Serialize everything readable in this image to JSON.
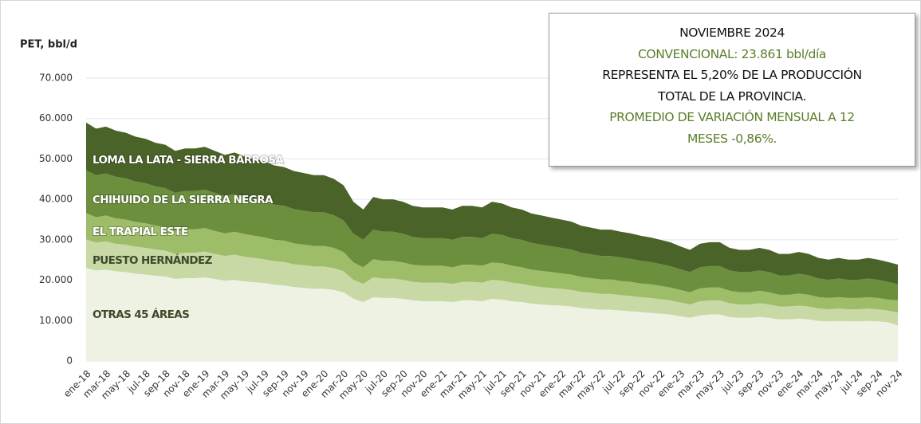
{
  "chart_data": {
    "type": "stacked_area",
    "y_label": "PET, bbl/d",
    "categories": [
      "ene-18",
      null,
      "mar-18",
      null,
      "may-18",
      null,
      "jul-18",
      null,
      "sep-18",
      null,
      "nov-18",
      null,
      "ene-19",
      null,
      "mar-19",
      null,
      "may-19",
      null,
      "jul-19",
      null,
      "sep-19",
      null,
      "nov-19",
      null,
      "ene-20",
      null,
      "mar-20",
      null,
      "may-20",
      null,
      "jul-20",
      null,
      "sep-20",
      null,
      "nov-20",
      null,
      "ene-21",
      null,
      "mar-21",
      null,
      "may-21",
      null,
      "jul-21",
      null,
      "sep-21",
      null,
      "nov-21",
      null,
      "ene-22",
      null,
      "mar-22",
      null,
      "may-22",
      null,
      "jul-22",
      null,
      "sep-22",
      null,
      "nov-22",
      null,
      "ene-23",
      null,
      "mar-23",
      null,
      "may-23",
      null,
      "jul-23",
      null,
      "sep-23",
      null,
      "nov-23",
      null,
      "ene-24",
      null,
      "mar-24",
      null,
      "may-24",
      null,
      "jul-24",
      null,
      "sep-24",
      null,
      "nov-24"
    ],
    "series": [
      {
        "name": "OTRAS 45 ÁREAS",
        "color": "#eef2e3",
        "values": [
          23000,
          22400,
          22600,
          22200,
          22000,
          21600,
          21400,
          21100,
          20900,
          20300,
          20500,
          20500,
          20700,
          20300,
          19900,
          20100,
          19700,
          19500,
          19300,
          18900,
          18700,
          18300,
          18100,
          17900,
          17900,
          17600,
          17000,
          15400,
          14600,
          15800,
          15600,
          15600,
          15400,
          15000,
          14800,
          14800,
          14800,
          14600,
          15000,
          15000,
          14800,
          15400,
          15200,
          14800,
          14600,
          14200,
          14000,
          13800,
          13700,
          13500,
          13100,
          12900,
          12700,
          12700,
          12500,
          12300,
          12100,
          11900,
          11700,
          11500,
          11100,
          10700,
          11300,
          11500,
          11500,
          10900,
          10700,
          10700,
          10900,
          10700,
          10300,
          10300,
          10500,
          10300,
          9900,
          9800,
          9900,
          9800,
          9800,
          9900,
          9800,
          9600,
          8800
        ]
      },
      {
        "name": "PUESTO HERNÁNDEZ",
        "color": "#c8d9a6",
        "values": [
          7100,
          6900,
          7000,
          6800,
          6800,
          6700,
          6600,
          6500,
          6400,
          6200,
          6300,
          6300,
          6400,
          6200,
          6100,
          6200,
          6100,
          6000,
          5900,
          5800,
          5800,
          5600,
          5600,
          5500,
          5500,
          5400,
          5200,
          4700,
          4500,
          4900,
          4800,
          4800,
          4700,
          4600,
          4600,
          4600,
          4600,
          4500,
          4600,
          4600,
          4600,
          4700,
          4700,
          4600,
          4500,
          4400,
          4300,
          4300,
          4200,
          4100,
          4000,
          4000,
          3900,
          3900,
          3800,
          3800,
          3700,
          3700,
          3600,
          3500,
          3400,
          3300,
          3500,
          3500,
          3500,
          3400,
          3300,
          3300,
          3400,
          3300,
          3200,
          3200,
          3200,
          3200,
          3100,
          3000,
          3100,
          3000,
          3000,
          3100,
          3000,
          2900,
          3200
        ]
      },
      {
        "name": "EL TRAPIAL ESTE",
        "color": "#9dbd69",
        "values": [
          6500,
          6300,
          6400,
          6300,
          6200,
          6100,
          6100,
          5900,
          5900,
          5700,
          5800,
          5800,
          5800,
          5700,
          5600,
          5700,
          5600,
          5500,
          5400,
          5300,
          5300,
          5200,
          5100,
          5100,
          5100,
          5000,
          4800,
          4300,
          4100,
          4500,
          4400,
          4400,
          4300,
          4200,
          4200,
          4200,
          4200,
          4100,
          4200,
          4200,
          4200,
          4300,
          4300,
          4200,
          4100,
          4000,
          4000,
          3900,
          3800,
          3800,
          3700,
          3600,
          3600,
          3600,
          3500,
          3500,
          3400,
          3400,
          3300,
          3200,
          3100,
          3000,
          3200,
          3200,
          3200,
          3100,
          3000,
          3000,
          3100,
          3000,
          2900,
          2900,
          3000,
          2900,
          2800,
          2800,
          2800,
          2800,
          2800,
          2800,
          2800,
          2700,
          3000
        ]
      },
      {
        "name": "CHIHUIDO DE LA SIERRA NEGRA",
        "color": "#6c8f3e",
        "values": [
          10600,
          10400,
          10400,
          10300,
          10200,
          10000,
          9900,
          9700,
          9600,
          9400,
          9500,
          9500,
          9500,
          9400,
          9200,
          9300,
          9100,
          9000,
          8900,
          8700,
          8600,
          8500,
          8400,
          8300,
          8300,
          8100,
          7800,
          7100,
          6800,
          7300,
          7200,
          7200,
          7100,
          6900,
          6800,
          6800,
          6800,
          6800,
          6900,
          6900,
          6800,
          7100,
          7000,
          6800,
          6800,
          6600,
          6500,
          6400,
          6300,
          6200,
          6000,
          5900,
          5800,
          5800,
          5800,
          5700,
          5600,
          5500,
          5400,
          5300,
          5100,
          5000,
          5200,
          5300,
          5300,
          5000,
          5000,
          5000,
          5000,
          5000,
          4800,
          4800,
          4900,
          4800,
          4600,
          4500,
          4600,
          4500,
          4500,
          4600,
          4500,
          4400,
          4000
        ]
      },
      {
        "name": "LOMA LA LATA - SIERRA BARROSA",
        "color": "#4a6328",
        "values": [
          11800,
          11500,
          11600,
          11400,
          11300,
          11100,
          11000,
          10800,
          10700,
          10400,
          10500,
          10500,
          10600,
          10400,
          10200,
          10300,
          10100,
          10000,
          9900,
          9700,
          9600,
          9400,
          9300,
          9200,
          9200,
          9000,
          8700,
          7900,
          7500,
          8100,
          8000,
          8000,
          7900,
          7700,
          7600,
          7600,
          7600,
          7500,
          7700,
          7700,
          7600,
          7900,
          7800,
          7600,
          7500,
          7300,
          7200,
          7100,
          7000,
          6900,
          6700,
          6600,
          6500,
          6500,
          6400,
          6300,
          6200,
          6100,
          6000,
          5900,
          5700,
          5500,
          5800,
          5900,
          5900,
          5600,
          5500,
          5500,
          5600,
          5500,
          5300,
          5300,
          5400,
          5300,
          5100,
          5000,
          5100,
          5000,
          5000,
          5100,
          5000,
          4900,
          4861
        ]
      }
    ],
    "ylim": [
      0,
      70000
    ],
    "yticks": [
      0,
      {
        "value": 10000,
        "label": "10.000"
      },
      {
        "value": 20000,
        "label": "20.000"
      },
      {
        "value": 30000,
        "label": "30.000"
      },
      {
        "value": 40000,
        "label": "40.000"
      },
      {
        "value": 50000,
        "label": "50.000"
      },
      {
        "value": 60000,
        "label": "60.000"
      },
      {
        "value": 70000,
        "label": "70.000"
      }
    ],
    "grid": true,
    "annotation": [
      {
        "text": "NOVIEMBRE 2024",
        "color": "#111111"
      },
      {
        "text": "CONVENCIONAL: 23.861 bbl/día",
        "color": "#5b7d2a"
      },
      {
        "text": "REPRESENTA EL 5,20% DE LA PRODUCCIÓN",
        "color": "#111111"
      },
      {
        "text": "TOTAL DE LA PROVINCIA.",
        "color": "#111111"
      },
      {
        "text": "PROMEDIO DE VARIACIÓN MENSUAL A 12",
        "color": "#5b7d2a"
      },
      {
        "text": "MESES -0,86%.",
        "color": "#5b7d2a"
      }
    ]
  }
}
